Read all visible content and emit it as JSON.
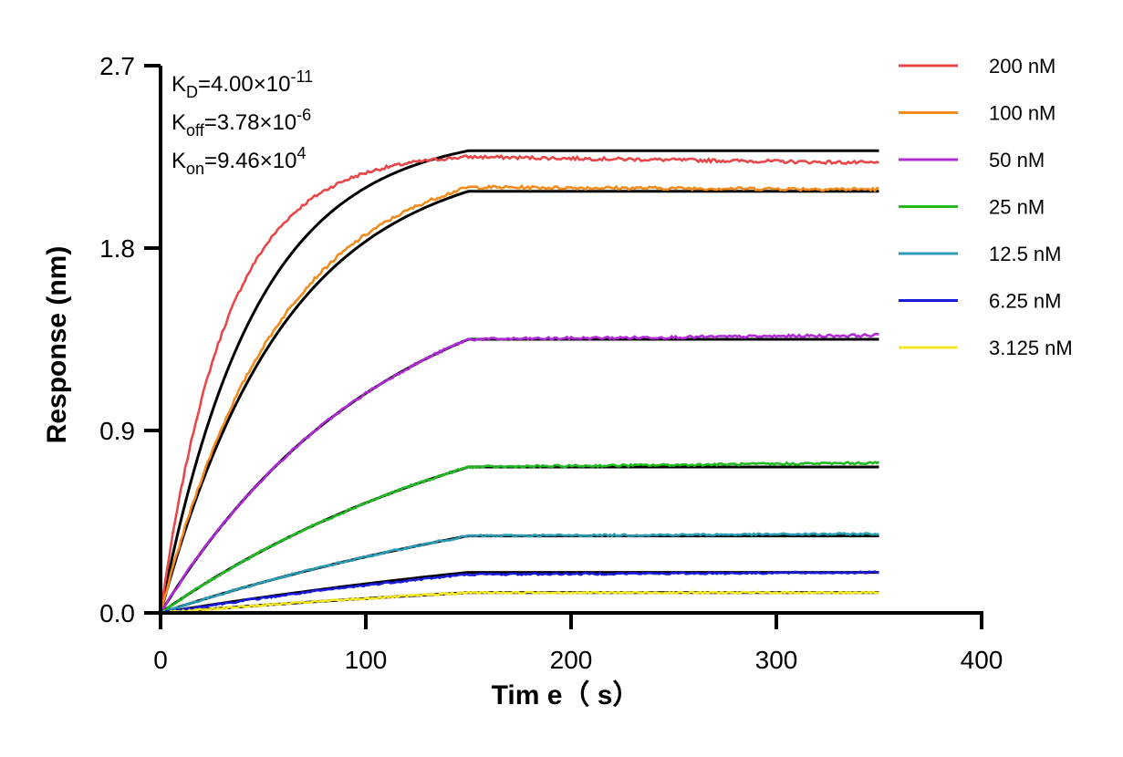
{
  "chart_data": {
    "type": "line",
    "title": "",
    "xlabel": "Tim e（ s）",
    "ylabel": "Response (nm)",
    "xlim": [
      0,
      400
    ],
    "ylim": [
      0,
      2.7
    ],
    "xticks": [
      "0",
      "100",
      "200",
      "300",
      "400"
    ],
    "yticks": [
      "0.0",
      "0.9",
      "1.8",
      "2.7"
    ],
    "grid": false,
    "legend_position": "right",
    "association_end": 150,
    "x_end": 350,
    "annotations": [
      {
        "main": "K",
        "sub": "D",
        "rest": "=4.00×10",
        "sup": "-11"
      },
      {
        "main": "K",
        "sub": "off",
        "rest": "=3.78×10",
        "sup": "-6"
      },
      {
        "main": "K",
        "sub": "on",
        "rest": "=9.46×10",
        "sup": "4"
      }
    ],
    "fit_color": "#000000",
    "series": [
      {
        "name": "200 nM",
        "color": "#e8474a",
        "plateau": 2.25,
        "fit_plateau": 2.28,
        "end_value": 2.22,
        "tau": 32
      },
      {
        "name": "100 nM",
        "color": "#f28a1c",
        "plateau": 2.1,
        "fit_plateau": 2.08,
        "end_value": 2.09,
        "tau": 58
      },
      {
        "name": "50 nM",
        "color": "#b02bd6",
        "plateau": 1.35,
        "fit_plateau": 1.35,
        "end_value": 1.37,
        "tau": 110
      },
      {
        "name": "25 nM",
        "color": "#22bb22",
        "plateau": 0.72,
        "fit_plateau": 0.72,
        "end_value": 0.74,
        "tau": 180
      },
      {
        "name": "12.5 nM",
        "color": "#2a9db5",
        "plateau": 0.38,
        "fit_plateau": 0.38,
        "end_value": 0.39,
        "tau": 260
      },
      {
        "name": "6.25 nM",
        "color": "#1a1adc",
        "plateau": 0.19,
        "fit_plateau": 0.2,
        "end_value": 0.2,
        "tau": 320
      },
      {
        "name": "3.125 nM",
        "color": "#f5e826",
        "plateau": 0.1,
        "fit_plateau": 0.1,
        "end_value": 0.1,
        "tau": 360
      }
    ]
  }
}
